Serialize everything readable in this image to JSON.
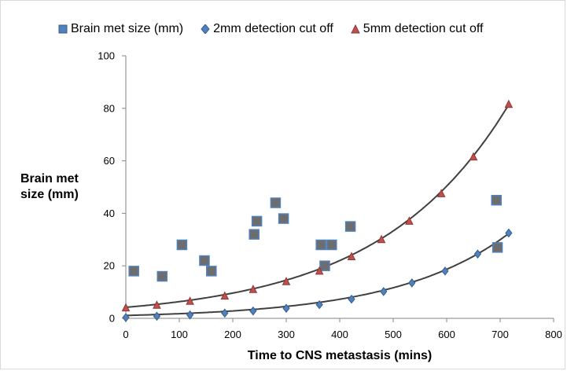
{
  "chart_data": {
    "type": "scatter",
    "title": "",
    "xlabel": "Time to CNS metastasis (mins)",
    "ylabel_lines": [
      "Brain met",
      "size (mm)"
    ],
    "xlim": [
      0,
      800
    ],
    "ylim": [
      0,
      100
    ],
    "xticks": [
      "0",
      "100",
      "200",
      "300",
      "400",
      "500",
      "600",
      "700",
      "800"
    ],
    "yticks": [
      "0",
      "20",
      "40",
      "60",
      "80",
      "100"
    ],
    "grid": false,
    "legend_position": "top",
    "series": [
      {
        "name": "Brain met size (mm)",
        "marker": "square",
        "color": "#4f81bd",
        "border": "#385d8a",
        "points": [
          [
            15,
            18
          ],
          [
            68,
            16
          ],
          [
            105,
            28
          ],
          [
            147,
            22
          ],
          [
            160,
            18
          ],
          [
            240,
            32
          ],
          [
            245,
            37
          ],
          [
            280,
            44
          ],
          [
            295,
            38
          ],
          [
            365,
            28
          ],
          [
            372,
            20
          ],
          [
            385,
            28
          ],
          [
            420,
            35
          ],
          [
            693,
            45
          ],
          [
            695,
            27
          ]
        ]
      },
      {
        "name": "2mm detection cut off",
        "marker": "diamond",
        "color": "#4f81bd",
        "border": "#385d8a",
        "points": [
          [
            0,
            0.3
          ],
          [
            58,
            0.8
          ],
          [
            120,
            1.3
          ],
          [
            185,
            2.0
          ],
          [
            238,
            2.8
          ],
          [
            300,
            3.8
          ],
          [
            362,
            5.2
          ],
          [
            422,
            7.3
          ],
          [
            482,
            10.2
          ],
          [
            535,
            13.5
          ],
          [
            597,
            18
          ],
          [
            658,
            24.5
          ],
          [
            716,
            32.5
          ]
        ],
        "trend": {
          "type": "exponential",
          "a": 1.1,
          "b": 0.00472
        }
      },
      {
        "name": "5mm detection cut off",
        "marker": "triangle",
        "color": "#c0504d",
        "border": "#8c3836",
        "points": [
          [
            0,
            4
          ],
          [
            58,
            5
          ],
          [
            120,
            6.5
          ],
          [
            185,
            8.5
          ],
          [
            238,
            11
          ],
          [
            300,
            14
          ],
          [
            362,
            18
          ],
          [
            422,
            23.5
          ],
          [
            478,
            30
          ],
          [
            530,
            37
          ],
          [
            590,
            47.5
          ],
          [
            650,
            61.5
          ],
          [
            716,
            81.5
          ]
        ],
        "trend": {
          "type": "exponential",
          "a": 4.2,
          "b": 0.00414
        }
      }
    ]
  }
}
